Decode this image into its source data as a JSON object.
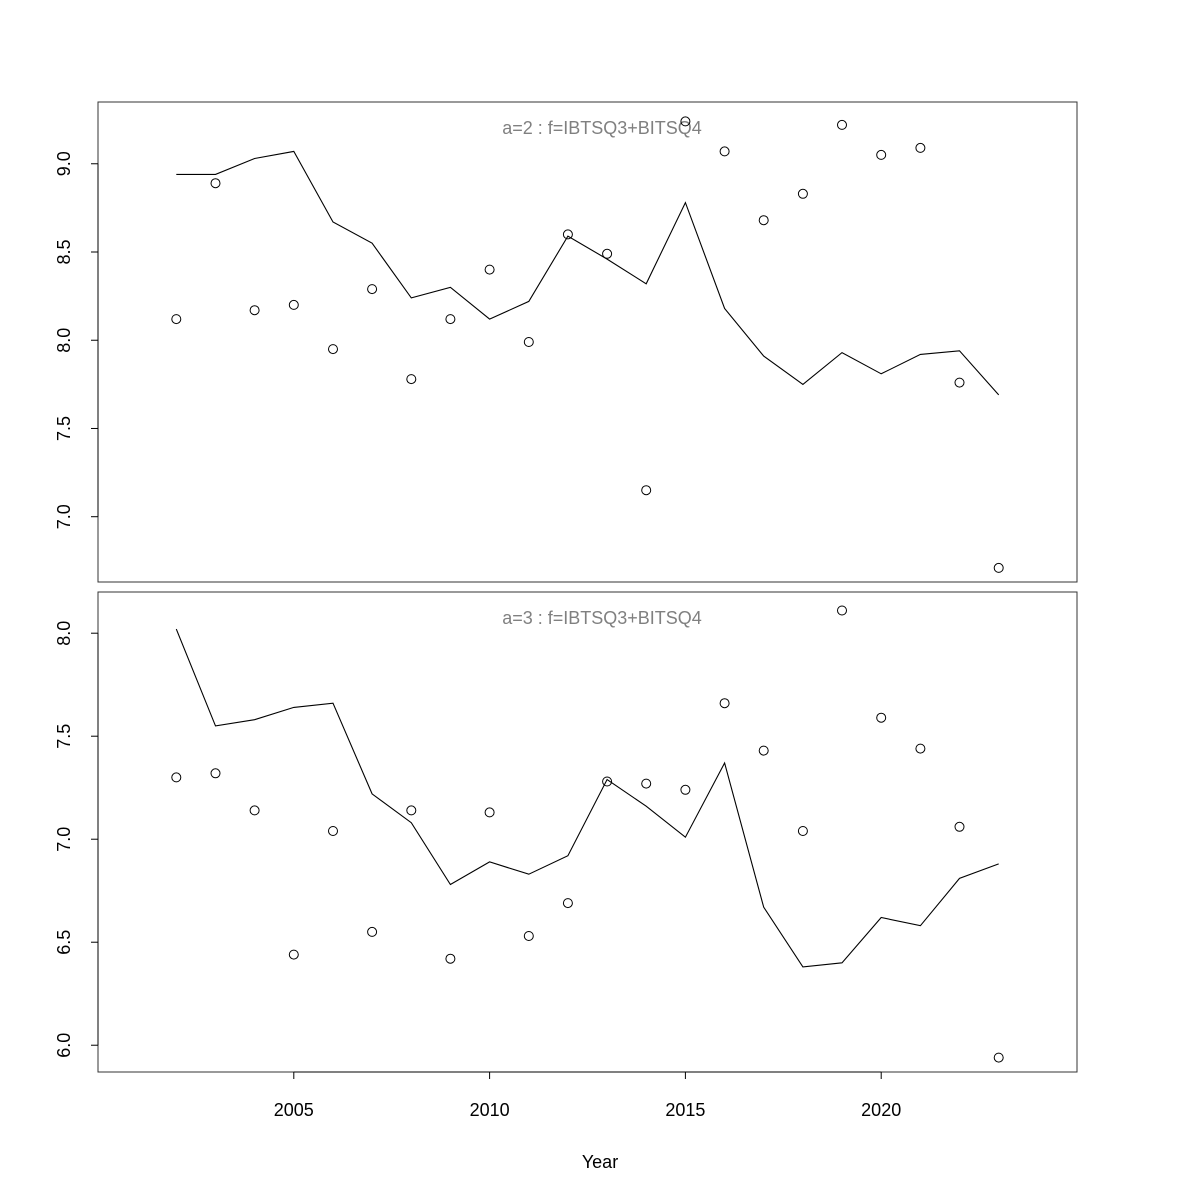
{
  "chart_data": {
    "type": "line",
    "xlabel": "Year",
    "xlim": [
      2000,
      2025
    ],
    "x_ticks": [
      2005,
      2010,
      2015,
      2020
    ],
    "x": [
      2002,
      2003,
      2004,
      2005,
      2006,
      2007,
      2008,
      2009,
      2010,
      2011,
      2012,
      2013,
      2014,
      2015,
      2016,
      2017,
      2018,
      2019,
      2020,
      2021,
      2022,
      2023
    ],
    "colors": {
      "line": "#000000",
      "points": "#000000",
      "panel_title": "#808080"
    },
    "panels": [
      {
        "title": "a=2  :  f=IBTSQ3+BITSQ4",
        "ylim": [
          6.63,
          9.35
        ],
        "y_ticks": [
          7.0,
          7.5,
          8.0,
          8.5,
          9.0
        ],
        "y_tick_labels": [
          "7.0",
          "7.5",
          "8.0",
          "8.5",
          "9.0"
        ],
        "series": [
          {
            "kind": "line",
            "values": [
              8.94,
              8.94,
              9.03,
              9.07,
              8.67,
              8.55,
              8.24,
              8.3,
              8.12,
              8.22,
              8.59,
              8.46,
              8.32,
              8.78,
              8.18,
              7.91,
              7.75,
              7.93,
              7.81,
              7.92,
              7.94,
              7.69
            ]
          },
          {
            "kind": "points",
            "values": [
              8.12,
              8.89,
              8.17,
              8.2,
              7.95,
              8.29,
              7.78,
              8.12,
              8.4,
              7.99,
              8.6,
              8.49,
              7.15,
              9.24,
              9.07,
              8.68,
              8.83,
              9.22,
              9.05,
              9.09,
              7.76,
              6.71
            ]
          }
        ]
      },
      {
        "title": "a=3  :  f=IBTSQ3+BITSQ4",
        "ylim": [
          5.87,
          8.2
        ],
        "y_ticks": [
          6.0,
          6.5,
          7.0,
          7.5,
          8.0
        ],
        "y_tick_labels": [
          "6.0",
          "6.5",
          "7.0",
          "7.5",
          "8.0"
        ],
        "series": [
          {
            "kind": "line",
            "values": [
              8.02,
              7.55,
              7.58,
              7.64,
              7.66,
              7.22,
              7.08,
              6.78,
              6.89,
              6.83,
              6.92,
              7.29,
              7.16,
              7.01,
              7.37,
              6.67,
              6.38,
              6.4,
              6.62,
              6.58,
              6.81,
              6.88
            ]
          },
          {
            "kind": "points",
            "values": [
              7.3,
              7.32,
              7.14,
              6.44,
              7.04,
              6.55,
              7.14,
              6.42,
              7.13,
              6.53,
              6.69,
              7.28,
              7.27,
              7.24,
              7.66,
              7.43,
              7.04,
              8.11,
              7.59,
              7.44,
              7.06,
              5.94
            ]
          }
        ]
      }
    ]
  }
}
